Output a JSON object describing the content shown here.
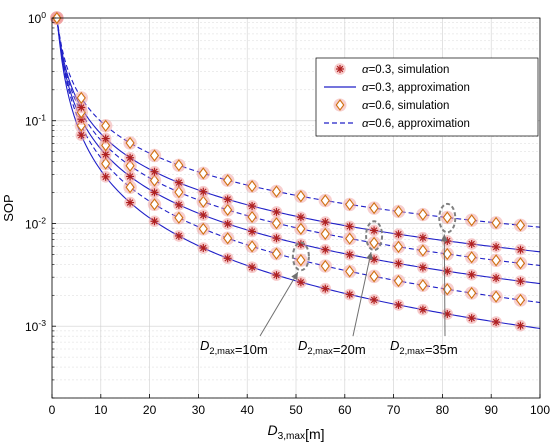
{
  "chart_data": {
    "type": "line",
    "xlabel": "D_{3,max}[m]",
    "ylabel": "SOP",
    "xlim": [
      0,
      100
    ],
    "ylim": [
      0.0002,
      1
    ],
    "yscale": "log",
    "grid": true,
    "legend_position": "top-right",
    "x_ticks": [
      0,
      10,
      20,
      30,
      40,
      50,
      60,
      70,
      80,
      90,
      100
    ],
    "x_tick_labels": [
      "0",
      "10",
      "20",
      "30",
      "40",
      "50",
      "60",
      "70",
      "80",
      "90",
      "100"
    ],
    "y_ticks": [
      0.001,
      0.01,
      0.1,
      1
    ],
    "y_tick_labels": [
      "10^-3",
      "10^-2",
      "10^-1",
      "10^0"
    ],
    "x_samples": [
      1,
      6,
      11,
      16,
      21,
      26,
      31,
      36,
      41,
      46,
      51,
      56,
      61,
      66,
      71,
      76,
      81,
      86,
      91,
      96
    ],
    "series": [
      {
        "group": "D_{2,max}=10m",
        "alpha": "0.3",
        "end_value": 0.00095,
        "power": 1.54
      },
      {
        "group": "D_{2,max}=10m",
        "alpha": "0.6",
        "end_value": 0.0017,
        "power": 1.41
      },
      {
        "group": "D_{2,max}=20m",
        "alpha": "0.3",
        "end_value": 0.0026,
        "power": 1.31
      },
      {
        "group": "D_{2,max}=20m",
        "alpha": "0.6",
        "end_value": 0.0039,
        "power": 1.22
      },
      {
        "group": "D_{2,max}=35m",
        "alpha": "0.3",
        "end_value": 0.0053,
        "power": 1.15
      },
      {
        "group": "D_{2,max}=35m",
        "alpha": "0.6",
        "end_value": 0.0092,
        "power": 1.03
      }
    ],
    "legend": [
      {
        "label": "α=0.3, simulation",
        "style": "star-marker"
      },
      {
        "label": "α=0.3, approximation",
        "style": "solid-line"
      },
      {
        "label": "α=0.6, simulation",
        "style": "diamond-marker"
      },
      {
        "label": "α=0.6, approximation",
        "style": "dashed-line"
      }
    ],
    "annotations": [
      {
        "text": "D_{2,max}=10m",
        "target_x": 51,
        "target_y_range": [
          0.0035,
          0.0065
        ]
      },
      {
        "text": "D_{2,max}=20m",
        "target_x": 66,
        "target_y_range": [
          0.0055,
          0.0105
        ]
      },
      {
        "text": "D_{2,max}=35m",
        "target_x": 81,
        "target_y_range": [
          0.0082,
          0.0155
        ]
      }
    ],
    "colors": {
      "line": "#2020c8",
      "star_marker": "#b02020",
      "diamond_marker": "#d07010",
      "marker_halo": "#f0a0a0",
      "grid": "#d0d0d0",
      "annotation": "#808080"
    }
  }
}
